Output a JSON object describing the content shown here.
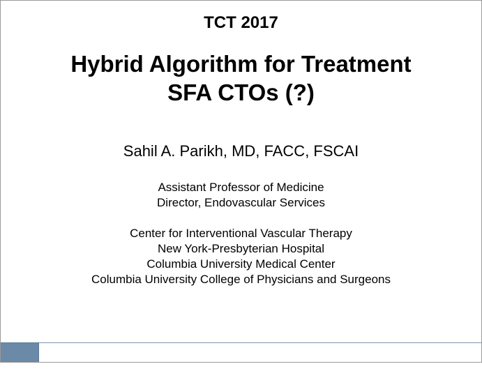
{
  "header": {
    "conference": "TCT 2017",
    "fontsize": 24,
    "fontweight": "bold",
    "color": "#000000"
  },
  "title": {
    "line1": "Hybrid Algorithm for Treatment",
    "line2": "SFA CTOs (?)",
    "fontsize": 33,
    "fontweight": "bold",
    "color": "#000000"
  },
  "speaker": {
    "name": "Sahil A. Parikh, MD, FACC, FSCAI",
    "fontsize": 22,
    "color": "#000000"
  },
  "roles": {
    "line1": "Assistant Professor of Medicine",
    "line2": "Director, Endovascular Services",
    "fontsize": 17,
    "color": "#000000"
  },
  "institutions": {
    "line1": "Center for Interventional Vascular Therapy",
    "line2": "New York-Presbyterian Hospital",
    "line3": "Columbia University Medical Center",
    "line4": "Columbia University College of Physicians and Surgeons",
    "fontsize": 17,
    "color": "#000000"
  },
  "style": {
    "background": "#ffffff",
    "border_color": "#999999",
    "accent_color": "#6b8aa8",
    "accent_line_color": "#7a95ae",
    "slide_width": 691,
    "slide_height": 520
  }
}
